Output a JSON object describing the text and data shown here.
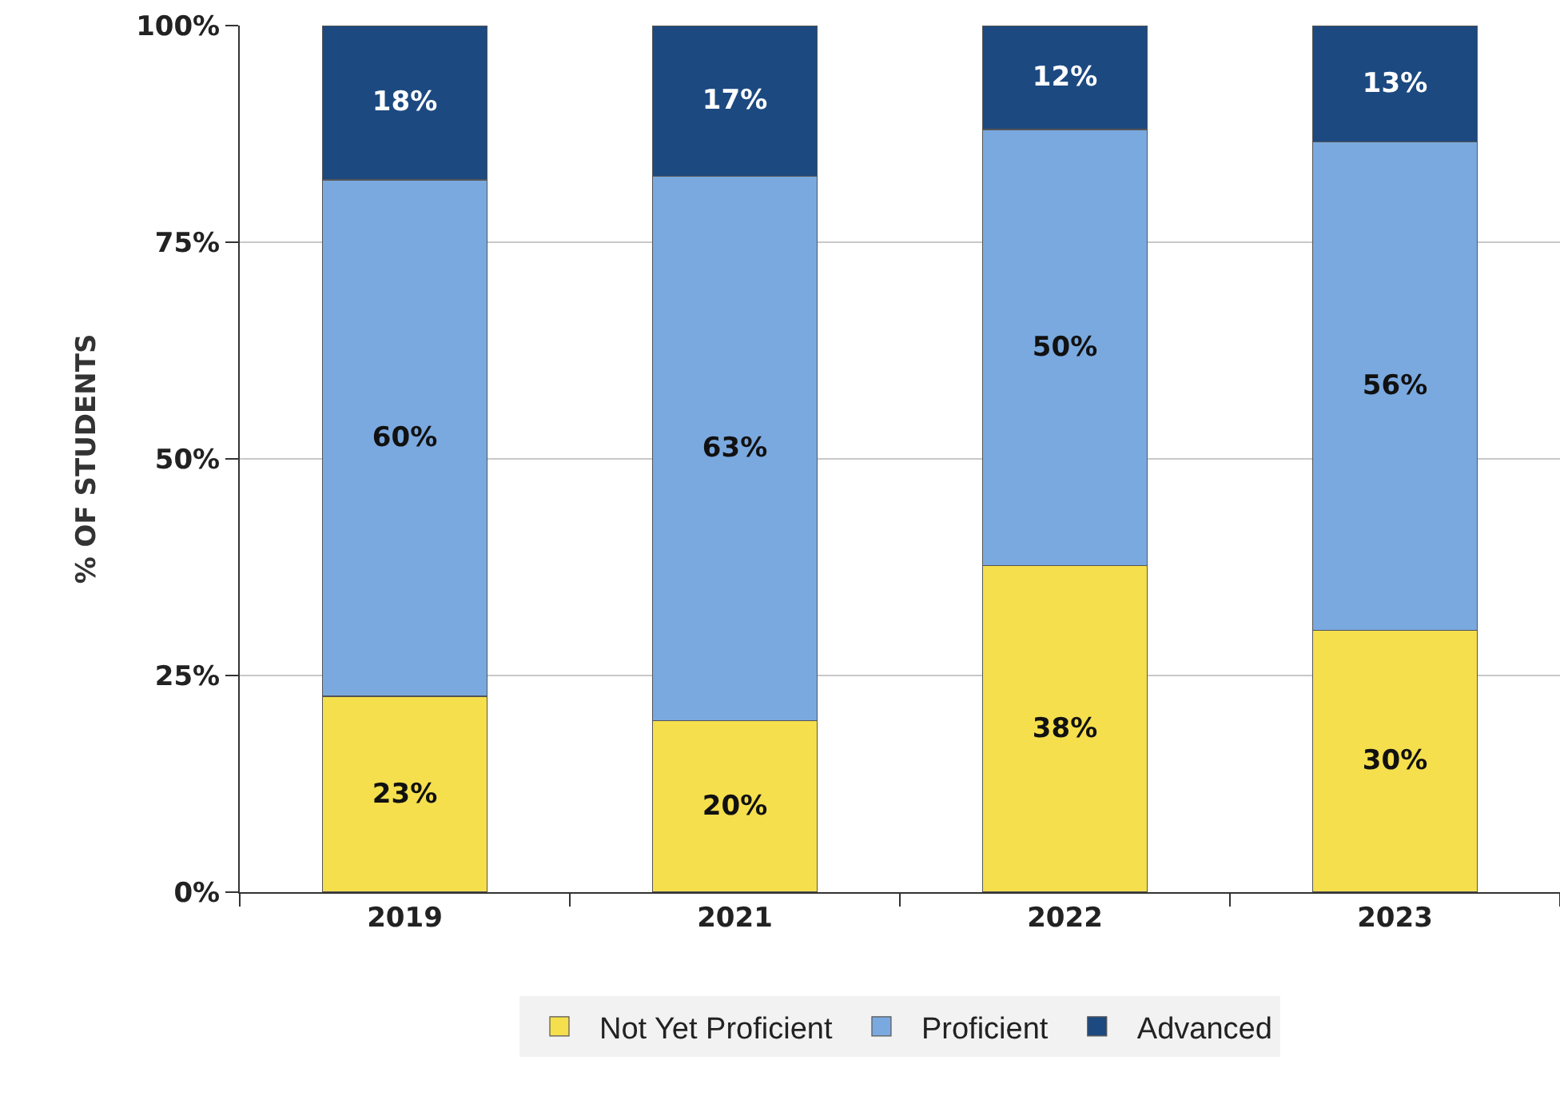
{
  "chart_data": {
    "type": "bar",
    "stacked": true,
    "ylabel": "% OF STUDENTS",
    "categories": [
      "2019",
      "2021",
      "2022",
      "2023"
    ],
    "series": [
      {
        "name": "Not Yet Proficient",
        "color": "#f5df4d",
        "values": [
          22.6,
          19.8,
          37.7,
          30.2
        ],
        "value_labels": [
          "23%",
          "20%",
          "38%",
          "30%"
        ]
      },
      {
        "name": "Proficient",
        "color": "#7aa9df",
        "values": [
          59.6,
          62.8,
          50.3,
          56.4
        ],
        "value_labels": [
          "60%",
          "63%",
          "50%",
          "56%"
        ]
      },
      {
        "name": "Advanced",
        "color": "#1c4980",
        "values": [
          17.8,
          17.4,
          12.0,
          13.4
        ],
        "value_labels": [
          "18%",
          "17%",
          "12%",
          "13%"
        ]
      }
    ],
    "ylim": [
      0,
      100
    ],
    "yticks": [
      {
        "value": 0,
        "label": "0%"
      },
      {
        "value": 25,
        "label": "25%"
      },
      {
        "value": 50,
        "label": "50%"
      },
      {
        "value": 75,
        "label": "75%"
      },
      {
        "value": 100,
        "label": "100%"
      }
    ],
    "grid": "y",
    "legend": "bottom"
  }
}
